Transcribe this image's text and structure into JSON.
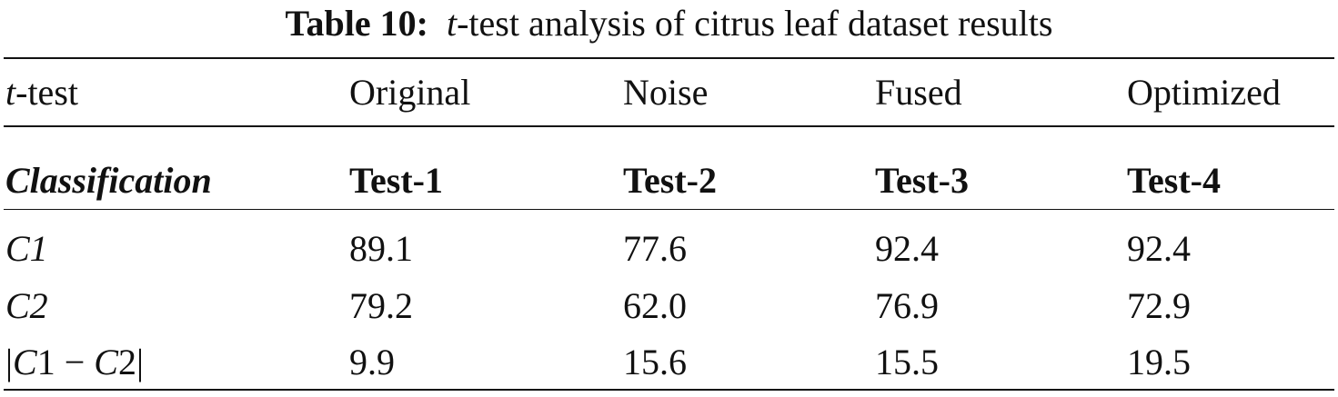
{
  "caption": {
    "label": "Table 10:",
    "t": "t",
    "rest": "-test analysis of citrus leaf dataset results"
  },
  "header": {
    "t": "t",
    "rest": "-test",
    "columns": [
      "Original",
      "Noise",
      "Fused",
      "Optimized"
    ]
  },
  "subheader": {
    "label": "Classification",
    "tests": [
      "Test-1",
      "Test-2",
      "Test-3",
      "Test-4"
    ]
  },
  "rows": [
    {
      "label": "C1",
      "values": [
        "89.1",
        "77.6",
        "92.4",
        "92.4"
      ]
    },
    {
      "label": "C2",
      "values": [
        "79.2",
        "62.0",
        "76.9",
        "72.9"
      ]
    },
    {
      "label": "|C1 − C2|",
      "values": [
        "9.9",
        "15.6",
        "15.5",
        "19.5"
      ]
    }
  ],
  "diff_label_parts": {
    "bar_left": "|",
    "c_a": "C",
    "one": "1 − ",
    "c_b": "C",
    "two": "2",
    "bar_right": "|"
  }
}
